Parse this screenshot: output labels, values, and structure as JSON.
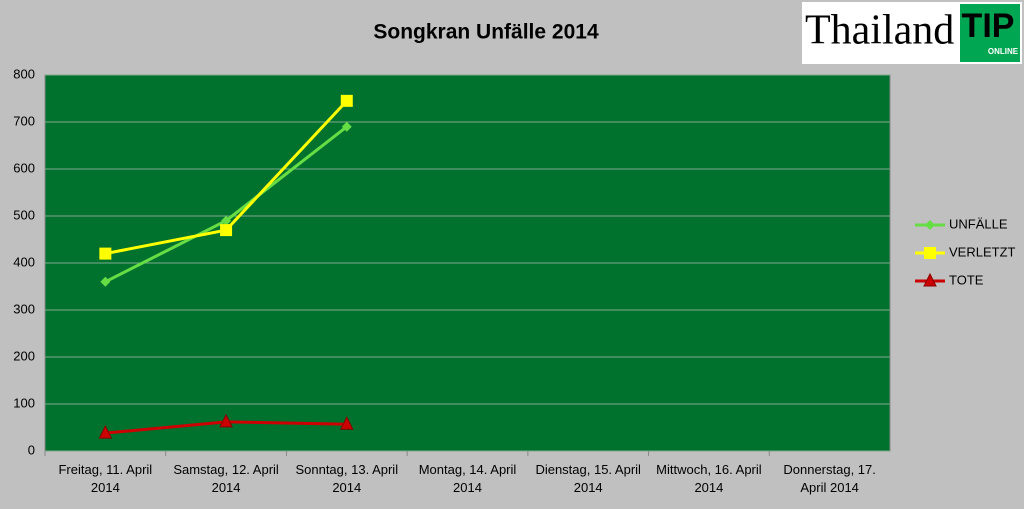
{
  "chart_data": {
    "type": "line",
    "title": "Songkran Unfälle 2014",
    "categories": [
      "Freitag, 11. April 2014",
      "Samstag, 12. April 2014",
      "Sonntag, 13. April 2014",
      "Montag, 14. April 2014",
      "Dienstag, 15. April 2014",
      "Mittwoch, 16. April 2014",
      "Donnerstag, 17. April 2014"
    ],
    "series": [
      {
        "name": "UNFÄLLE",
        "color": "#66dd44",
        "marker": "diamond",
        "values": [
          360,
          490,
          690,
          null,
          null,
          null,
          null
        ]
      },
      {
        "name": "VERLETZT",
        "color": "#ffff00",
        "marker": "square",
        "values": [
          420,
          470,
          745,
          null,
          null,
          null,
          null
        ]
      },
      {
        "name": "TOTE",
        "color": "#cc0000",
        "marker": "triangle",
        "values": [
          38,
          62,
          57,
          null,
          null,
          null,
          null
        ]
      }
    ],
    "ylim": [
      0,
      800
    ],
    "yticks": [
      0,
      100,
      200,
      300,
      400,
      500,
      600,
      700,
      800
    ],
    "grid": true,
    "legend": "right"
  },
  "logo": {
    "text": "Thailand",
    "badge": "TIP",
    "sub": "ONLINE"
  }
}
